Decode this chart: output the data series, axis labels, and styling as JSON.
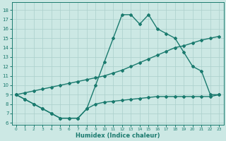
{
  "line1_x": [
    0,
    1,
    2,
    3,
    4,
    5,
    6,
    7,
    8,
    9,
    10,
    11,
    12,
    13,
    14,
    15,
    16,
    17,
    18,
    19,
    20,
    21,
    22,
    23
  ],
  "line1_y": [
    9,
    8.5,
    8,
    7.5,
    7,
    6.5,
    6.5,
    6.5,
    7.5,
    10,
    12.5,
    15,
    17.5,
    17.5,
    16.5,
    17.5,
    16,
    15.5,
    15,
    13.5,
    12,
    11.5,
    9,
    9
  ],
  "line2_x": [
    0,
    1,
    2,
    3,
    4,
    5,
    6,
    7,
    8,
    9,
    10,
    11,
    12,
    13,
    14,
    15,
    16,
    17,
    18,
    19,
    20,
    21,
    22,
    23
  ],
  "line2_y": [
    9,
    9.2,
    9.4,
    9.6,
    9.8,
    10.0,
    10.2,
    10.4,
    10.6,
    10.8,
    11.0,
    11.3,
    11.6,
    12.0,
    12.4,
    12.8,
    13.2,
    13.6,
    14.0,
    14.2,
    14.5,
    14.8,
    15.0,
    15.2
  ],
  "line3_x": [
    0,
    1,
    2,
    3,
    4,
    5,
    6,
    7,
    8,
    9,
    10,
    11,
    12,
    13,
    14,
    15,
    16,
    17,
    18,
    19,
    20,
    21,
    22,
    23
  ],
  "line3_y": [
    9,
    8.5,
    8.0,
    7.5,
    7.0,
    6.5,
    6.5,
    6.5,
    7.5,
    8.0,
    8.2,
    8.3,
    8.4,
    8.5,
    8.6,
    8.7,
    8.8,
    8.8,
    8.8,
    8.8,
    8.8,
    8.8,
    8.8,
    9.0
  ],
  "line_color": "#1a7a6e",
  "bg_color": "#cce8e4",
  "grid_color": "#aacfcb",
  "xlabel": "Humidex (Indice chaleur)",
  "xlim": [
    -0.5,
    23.5
  ],
  "ylim": [
    5.8,
    18.8
  ],
  "xticks": [
    0,
    1,
    2,
    3,
    4,
    5,
    6,
    7,
    8,
    9,
    10,
    11,
    12,
    13,
    14,
    15,
    16,
    17,
    18,
    19,
    20,
    21,
    22,
    23
  ],
  "yticks": [
    6,
    7,
    8,
    9,
    10,
    11,
    12,
    13,
    14,
    15,
    16,
    17,
    18
  ],
  "marker": "D",
  "markersize": 2.0,
  "linewidth": 1.0
}
